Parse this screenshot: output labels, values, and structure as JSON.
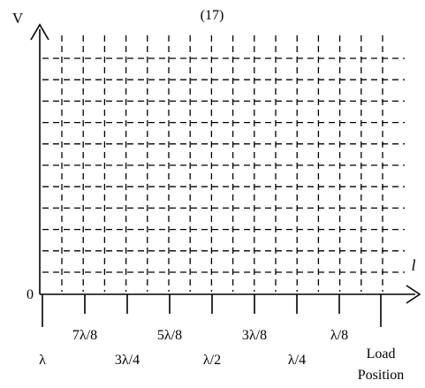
{
  "figure_number": "(17)",
  "y_axis_label": "V",
  "x_axis_label": "l",
  "origin_label": "0",
  "position_labels": [
    {
      "text": "λ",
      "row": "lower"
    },
    {
      "text": "7λ/8",
      "row": "upper"
    },
    {
      "text": "3λ/4",
      "row": "lower"
    },
    {
      "text": "5λ/8",
      "row": "upper"
    },
    {
      "text": "λ/2",
      "row": "lower"
    },
    {
      "text": "3λ/8",
      "row": "upper"
    },
    {
      "text": "λ/4",
      "row": "lower"
    },
    {
      "text": "λ/8",
      "row": "upper"
    }
  ],
  "load_label": [
    "Load",
    "Position"
  ]
}
